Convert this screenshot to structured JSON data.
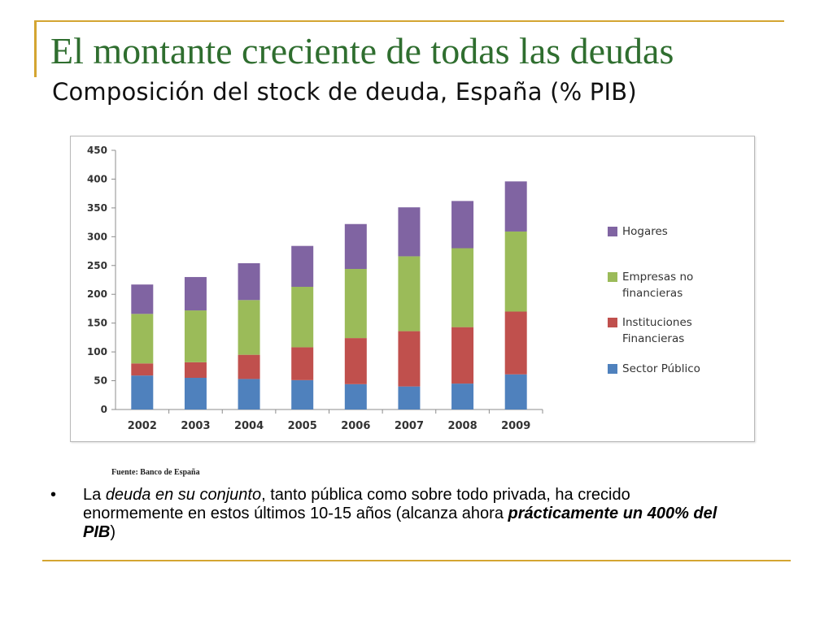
{
  "slide": {
    "title": "El montante creciente de todas las deudas",
    "bullet_symbol": "•",
    "source": "Fuente: Banco de España",
    "bullet": {
      "t1": "La ",
      "t2": "deuda en su conjunto",
      "t3": ", tanto pública como sobre todo privada, ha crecido enormemente en estos últimos 10-15 años (alcanza ahora ",
      "t4": "prácticamente un 400% del PIB",
      "t5": ")"
    }
  },
  "colors": {
    "accent_rule": "#d4a531",
    "title": "#2f6e2f",
    "sector_publico": "#4f81bd",
    "instituciones": "#c0504d",
    "empresas": "#9bbb59",
    "hogares": "#8064a2"
  },
  "chart_data": {
    "type": "bar",
    "stacked": true,
    "title": "Composición del stock de deuda, España (% PIB)",
    "xlabel": "",
    "ylabel": "",
    "categories": [
      "2002",
      "2003",
      "2004",
      "2005",
      "2006",
      "2007",
      "2008",
      "2009"
    ],
    "ylim": [
      0,
      450
    ],
    "yticks": [
      "0",
      "50",
      "100",
      "150",
      "200",
      "250",
      "300",
      "350",
      "400",
      "450"
    ],
    "grid": true,
    "legend_position": "right",
    "series": [
      {
        "name": "Sector Público",
        "color": "#4f81bd",
        "values": [
          59,
          55,
          53,
          51,
          44,
          40,
          45,
          61
        ]
      },
      {
        "name": "Instituciones Financieras",
        "color": "#c0504d",
        "values": [
          21,
          27,
          42,
          57,
          80,
          96,
          98,
          109
        ]
      },
      {
        "name": "Empresas no financieras",
        "color": "#9bbb59",
        "values": [
          86,
          90,
          95,
          105,
          120,
          130,
          137,
          139
        ]
      },
      {
        "name": "Hogares",
        "color": "#8064a2",
        "values": [
          51,
          58,
          64,
          71,
          78,
          85,
          82,
          87
        ]
      }
    ],
    "legend_order": [
      "Hogares",
      "Empresas no financieras",
      "Instituciones Financieras",
      "Sector Público"
    ],
    "legend_lines": {
      "Hogares": [
        "Hogares"
      ],
      "Empresas no financieras": [
        "Empresas no",
        "financieras"
      ],
      "Instituciones Financieras": [
        "Instituciones",
        "Financieras"
      ],
      "Sector Público": [
        "Sector Público"
      ]
    }
  }
}
